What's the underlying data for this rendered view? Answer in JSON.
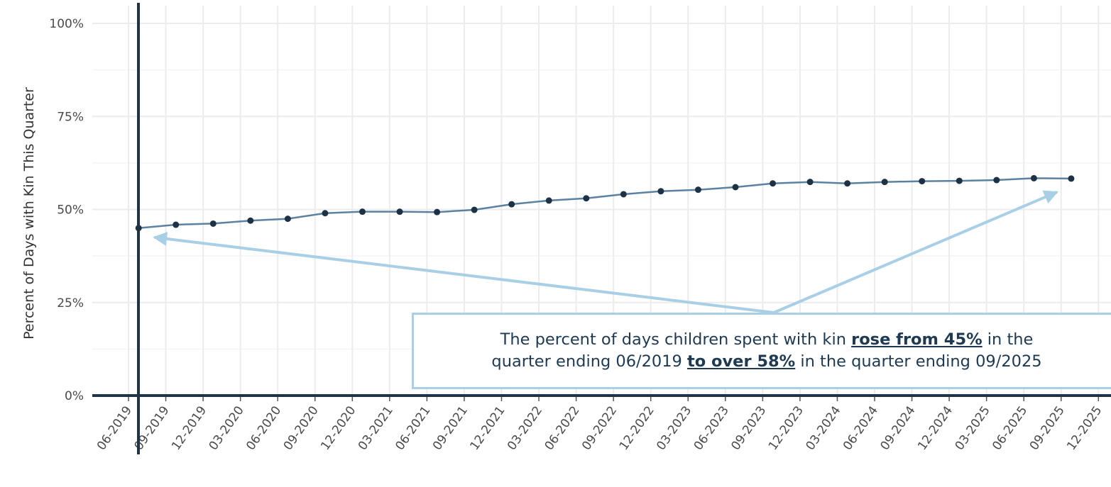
{
  "chart_data": {
    "type": "line",
    "ylabel": "Percent of Days with Kin This Quarter",
    "xlabel": "",
    "ylim": [
      0,
      100
    ],
    "y_ticks": [
      0,
      25,
      50,
      75,
      100
    ],
    "y_tick_labels": [
      "0%",
      "25%",
      "50%",
      "75%",
      "100%"
    ],
    "x_tick_labels": [
      "06-2019",
      "09-2019",
      "12-2019",
      "03-2020",
      "06-2020",
      "09-2020",
      "12-2020",
      "03-2021",
      "06-2021",
      "09-2021",
      "12-2021",
      "03-2022",
      "06-2022",
      "09-2022",
      "12-2022",
      "03-2023",
      "06-2023",
      "09-2023",
      "12-2023",
      "03-2024",
      "06-2024",
      "09-2024",
      "12-2024",
      "03-2025",
      "06-2025",
      "09-2025",
      "12-2025"
    ],
    "grid": true,
    "series": [
      {
        "values": [
          45.0,
          45.9,
          46.2,
          47.0,
          47.5,
          49.0,
          49.4,
          49.4,
          49.3,
          49.9,
          51.4,
          52.4,
          53.0,
          54.1,
          54.9,
          55.3,
          56.0,
          57.0,
          57.4,
          57.0,
          57.4,
          57.6,
          57.7,
          57.9,
          58.4,
          58.3
        ]
      }
    ],
    "colors": {
      "line": "#5b82a3",
      "point": "#1e3246",
      "axis": "#1f3447",
      "grid": "#ececec",
      "arrow": "#a8cfe6",
      "callout_text": "#1e3a52"
    },
    "annotation": {
      "line1_pre": "The percent of days children spent with kin ",
      "line1_bold": "rose from 45%",
      "line1_post": " in the",
      "line2_pre": "quarter ending 06/2019 ",
      "line2_bold": "to over 58%",
      "line2_post": " in the quarter ending 09/2025"
    }
  }
}
